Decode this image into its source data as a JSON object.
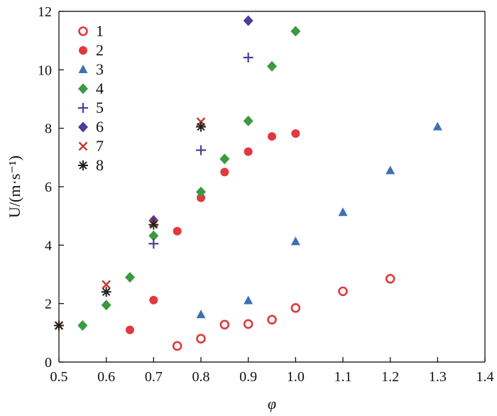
{
  "chart_data": {
    "type": "scatter",
    "title": "",
    "xlabel": "φ",
    "ylabel": "U/(m·s⁻¹)",
    "xlim": [
      0.5,
      1.4
    ],
    "ylim": [
      0,
      12
    ],
    "x_ticks": [
      "0.5",
      "0.6",
      "0.7",
      "0.8",
      "0.9",
      "1.0",
      "1.1",
      "1.2",
      "1.3",
      "1.4"
    ],
    "y_ticks": [
      "0",
      "2",
      "4",
      "6",
      "8",
      "10",
      "12"
    ],
    "grid": false,
    "legend_position": "top-left",
    "series": [
      {
        "name": "1",
        "marker": "open-circle",
        "color": "#e0393e",
        "points": [
          [
            0.75,
            0.55
          ],
          [
            0.8,
            0.8
          ],
          [
            0.85,
            1.28
          ],
          [
            0.9,
            1.3
          ],
          [
            0.95,
            1.45
          ],
          [
            1.0,
            1.85
          ],
          [
            1.1,
            2.42
          ],
          [
            1.2,
            2.85
          ]
        ]
      },
      {
        "name": "2",
        "marker": "circle",
        "color": "#e0393e",
        "points": [
          [
            0.65,
            1.1
          ],
          [
            0.7,
            2.12
          ],
          [
            0.75,
            4.48
          ],
          [
            0.8,
            5.62
          ],
          [
            0.85,
            6.5
          ],
          [
            0.9,
            7.2
          ],
          [
            0.95,
            7.72
          ],
          [
            1.0,
            7.82
          ]
        ]
      },
      {
        "name": "3",
        "marker": "triangle",
        "color": "#3f6fb5",
        "points": [
          [
            0.8,
            1.62
          ],
          [
            0.9,
            2.1
          ],
          [
            1.0,
            4.12
          ],
          [
            1.1,
            5.12
          ],
          [
            1.2,
            6.55
          ],
          [
            1.3,
            8.05
          ]
        ]
      },
      {
        "name": "4",
        "marker": "diamond",
        "color": "#3a9a3f",
        "points": [
          [
            0.55,
            1.25
          ],
          [
            0.6,
            1.95
          ],
          [
            0.65,
            2.9
          ],
          [
            0.7,
            4.32
          ],
          [
            0.8,
            5.82
          ],
          [
            0.85,
            6.95
          ],
          [
            0.9,
            8.25
          ],
          [
            0.95,
            10.12
          ],
          [
            1.0,
            11.32
          ]
        ]
      },
      {
        "name": "5",
        "marker": "plus",
        "color": "#4b3c99",
        "points": [
          [
            0.7,
            4.05
          ],
          [
            0.8,
            7.25
          ],
          [
            0.9,
            10.42
          ]
        ]
      },
      {
        "name": "6",
        "marker": "diamond",
        "color": "#4b3c99",
        "points": [
          [
            0.7,
            4.85
          ],
          [
            0.9,
            11.68
          ]
        ]
      },
      {
        "name": "7",
        "marker": "x",
        "color": "#c0392b",
        "points": [
          [
            0.5,
            1.25
          ],
          [
            0.6,
            2.65
          ],
          [
            0.7,
            4.75
          ],
          [
            0.8,
            8.22
          ]
        ]
      },
      {
        "name": "8",
        "marker": "star",
        "color": "#222222",
        "points": [
          [
            0.5,
            1.25
          ],
          [
            0.6,
            2.4
          ],
          [
            0.7,
            4.7
          ],
          [
            0.8,
            8.05
          ]
        ]
      }
    ]
  }
}
